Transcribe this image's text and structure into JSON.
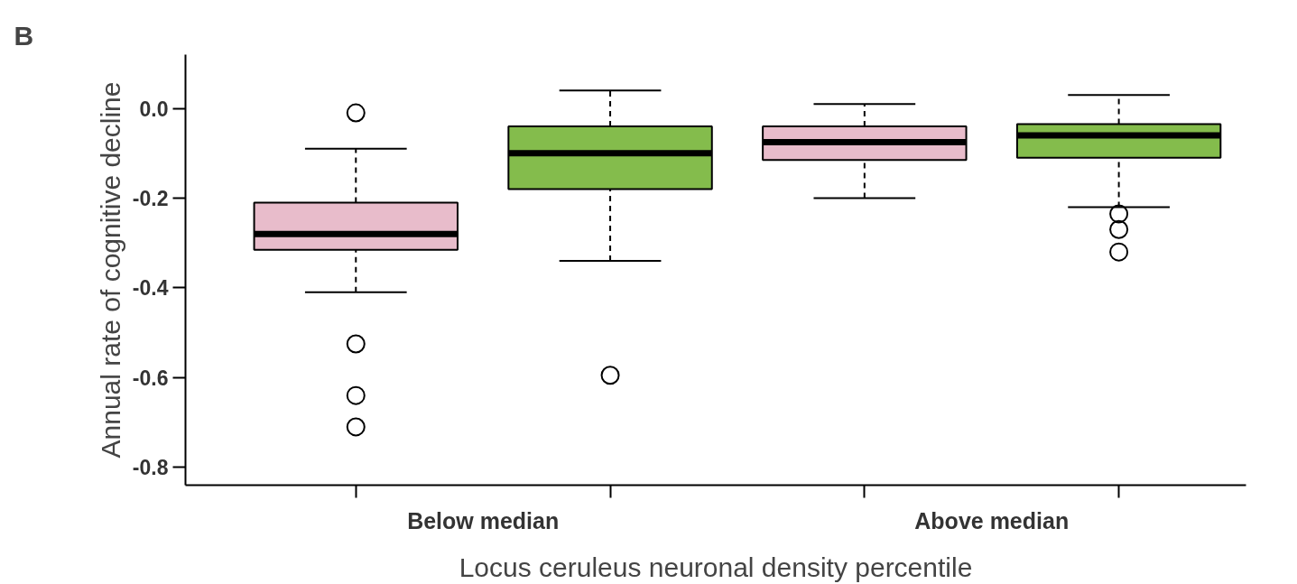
{
  "chart_data": {
    "type": "box",
    "annotations": [
      "B"
    ],
    "xlabel": "Locus ceruleus neuronal density percentile",
    "ylabel": "Annual rate of cognitive decline",
    "categories": [
      "Below median",
      "Above median"
    ],
    "ylim": [
      -0.84,
      0.12
    ],
    "yticks": [
      {
        "value": 0,
        "label": "0.0"
      },
      -0.2,
      -0.4,
      -0.6,
      -0.8
    ],
    "grid": false,
    "series": [
      {
        "color": "#e8bccb",
        "boxes": [
          {
            "low": -0.41,
            "q1": -0.315,
            "median": -0.28,
            "q3": -0.21,
            "high": -0.09,
            "outliers": [
              -0.01,
              -0.525,
              -0.64,
              -0.71
            ]
          },
          {
            "low": -0.2,
            "q1": -0.115,
            "median": -0.075,
            "q3": -0.04,
            "high": 0.01
          }
        ]
      },
      {
        "color": "#84bc4c",
        "boxes": [
          {
            "low": -0.34,
            "q1": -0.18,
            "median": -0.1,
            "q3": -0.04,
            "high": 0.04,
            "outliers": [
              -0.595
            ]
          },
          {
            "low": -0.22,
            "q1": -0.11,
            "median": -0.06,
            "q3": -0.035,
            "high": 0.03,
            "outliers": [
              -0.235,
              -0.27,
              -0.32
            ]
          }
        ]
      }
    ]
  }
}
